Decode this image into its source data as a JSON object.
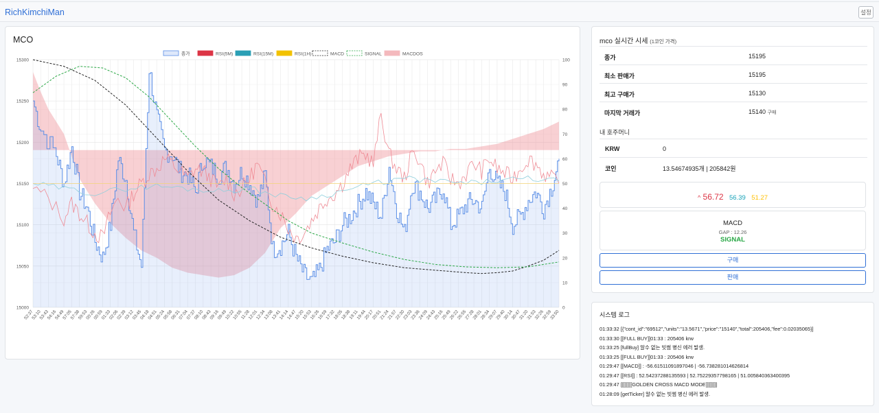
{
  "app": {
    "brand": "RichKimchiMan",
    "settings_label": "설정"
  },
  "chart": {
    "title": "MCO"
  },
  "chart_data": {
    "type": "line",
    "legend": [
      {
        "name": "종가",
        "color": "#aecbf5",
        "style": "fill"
      },
      {
        "name": "RSI(5M)",
        "color": "#dc3545",
        "style": "fill"
      },
      {
        "name": "RSI(15M)",
        "color": "#2a9fb5",
        "style": "fill"
      },
      {
        "name": "RSI(1H)",
        "color": "#f2c200",
        "style": "fill"
      },
      {
        "name": "MACD",
        "color": "#222222",
        "style": "dash"
      },
      {
        "name": "SIGNAL",
        "color": "#28a745",
        "style": "dash"
      },
      {
        "name": "MACDOS",
        "color": "#f4b9bd",
        "style": "fill"
      }
    ],
    "legend_position": "top",
    "grid": true,
    "y_left": {
      "min": 15000,
      "max": 15300,
      "ticks": [
        15000,
        15050,
        15100,
        15150,
        15200,
        15250,
        15300
      ]
    },
    "y_right": {
      "min": 0,
      "max": 100,
      "ticks": [
        0,
        10,
        20,
        30,
        40,
        50,
        60,
        70,
        80,
        90,
        100
      ]
    },
    "x_ticks": [
      "52:37",
      "53:10",
      "53:43",
      "54:16",
      "54:49",
      "57:05",
      "57:38",
      "59:53",
      "00:26",
      "00:59",
      "01:33",
      "02:06",
      "02:39",
      "03:12",
      "03:45",
      "04:18",
      "04:51",
      "05:24",
      "05:58",
      "06:31",
      "07:04",
      "07:37",
      "08:10",
      "08:43",
      "09:16",
      "09:49",
      "10:22",
      "10:55",
      "11:28",
      "12:01",
      "12:34",
      "13:08",
      "13:41",
      "14:14",
      "14:47",
      "15:20",
      "15:53",
      "16:26",
      "16:59",
      "17:32",
      "18:05",
      "18:38",
      "19:11",
      "19:44",
      "20:17",
      "20:51",
      "21:24",
      "21:57",
      "22:30",
      "23:03",
      "23:36",
      "24:09",
      "24:43",
      "25:16",
      "25:49",
      "26:22",
      "26:55",
      "27:28",
      "28:01",
      "28:34",
      "29:07",
      "29:40",
      "30:14",
      "30:47",
      "31:20",
      "31:53",
      "32:26",
      "32:59",
      "33:50"
    ],
    "close_keypoints": [
      [
        0,
        15250
      ],
      [
        1,
        15215
      ],
      [
        3,
        15185
      ],
      [
        4,
        15150
      ],
      [
        5,
        15195
      ],
      [
        6,
        15140
      ],
      [
        7,
        15120
      ],
      [
        8,
        15080
      ],
      [
        9,
        15060
      ],
      [
        10,
        15100
      ],
      [
        11,
        15180
      ],
      [
        12,
        15155
      ],
      [
        13,
        15090
      ],
      [
        14,
        15050
      ],
      [
        15,
        15290
      ],
      [
        16,
        15230
      ],
      [
        17,
        15190
      ],
      [
        18,
        15185
      ],
      [
        19,
        15165
      ],
      [
        20,
        15160
      ],
      [
        21,
        15140
      ],
      [
        22,
        15180
      ],
      [
        23,
        15170
      ],
      [
        24,
        15160
      ],
      [
        25,
        15170
      ],
      [
        26,
        15150
      ],
      [
        27,
        15165
      ],
      [
        28,
        15150
      ],
      [
        29,
        15130
      ],
      [
        30,
        15160
      ],
      [
        31,
        15070
      ],
      [
        32,
        15075
      ],
      [
        33,
        15090
      ],
      [
        34,
        15060
      ],
      [
        35,
        15040
      ],
      [
        36,
        15030
      ],
      [
        37,
        15045
      ],
      [
        38,
        15070
      ],
      [
        39,
        15080
      ],
      [
        40,
        15100
      ],
      [
        41,
        15110
      ],
      [
        42,
        15125
      ],
      [
        43,
        15140
      ],
      [
        44,
        15125
      ],
      [
        45,
        15110
      ],
      [
        46,
        15170
      ],
      [
        47,
        15120
      ],
      [
        48,
        15090
      ],
      [
        49,
        15150
      ],
      [
        50,
        15140
      ],
      [
        51,
        15120
      ],
      [
        52,
        15130
      ],
      [
        53,
        15145
      ],
      [
        54,
        15100
      ],
      [
        55,
        15110
      ],
      [
        56,
        15125
      ],
      [
        57,
        15130
      ],
      [
        58,
        15120
      ],
      [
        59,
        15170
      ],
      [
        60,
        15150
      ],
      [
        61,
        15140
      ],
      [
        62,
        15100
      ],
      [
        63,
        15110
      ],
      [
        64,
        15130
      ],
      [
        65,
        15140
      ],
      [
        66,
        15120
      ],
      [
        67,
        15145
      ],
      [
        68,
        15180
      ]
    ],
    "rsi5m_keypoints": [
      [
        0,
        48
      ],
      [
        2,
        44
      ],
      [
        4,
        36
      ],
      [
        5,
        42
      ],
      [
        6,
        38
      ],
      [
        7,
        34
      ],
      [
        8,
        30
      ],
      [
        9,
        28
      ],
      [
        10,
        38
      ],
      [
        11,
        44
      ],
      [
        12,
        40
      ],
      [
        13,
        46
      ],
      [
        14,
        50
      ],
      [
        15,
        54
      ],
      [
        16,
        56
      ],
      [
        17,
        60
      ],
      [
        18,
        58
      ],
      [
        19,
        55
      ],
      [
        20,
        52
      ],
      [
        21,
        56
      ],
      [
        22,
        55
      ],
      [
        23,
        52
      ],
      [
        24,
        48
      ],
      [
        25,
        52
      ],
      [
        26,
        46
      ],
      [
        27,
        48
      ],
      [
        28,
        52
      ],
      [
        29,
        58
      ],
      [
        30,
        50
      ],
      [
        31,
        42
      ],
      [
        32,
        38
      ],
      [
        33,
        32
      ],
      [
        34,
        28
      ],
      [
        35,
        30
      ],
      [
        36,
        35
      ],
      [
        37,
        40
      ],
      [
        38,
        44
      ],
      [
        39,
        46
      ],
      [
        40,
        50
      ],
      [
        41,
        56
      ],
      [
        42,
        60
      ],
      [
        43,
        62
      ],
      [
        44,
        58
      ],
      [
        45,
        78
      ],
      [
        46,
        62
      ],
      [
        47,
        56
      ],
      [
        48,
        52
      ],
      [
        49,
        62
      ],
      [
        50,
        60
      ],
      [
        51,
        50
      ],
      [
        52,
        55
      ],
      [
        53,
        58
      ],
      [
        54,
        52
      ],
      [
        55,
        50
      ],
      [
        56,
        54
      ],
      [
        57,
        58
      ],
      [
        58,
        55
      ],
      [
        59,
        60
      ],
      [
        60,
        56
      ],
      [
        61,
        54
      ],
      [
        62,
        52
      ],
      [
        63,
        56
      ],
      [
        64,
        60
      ],
      [
        65,
        58
      ],
      [
        66,
        54
      ],
      [
        67,
        52
      ],
      [
        68,
        50
      ]
    ],
    "rsi15m_keypoints": [
      [
        0,
        50
      ],
      [
        4,
        48
      ],
      [
        8,
        46
      ],
      [
        12,
        48
      ],
      [
        16,
        49
      ],
      [
        20,
        48
      ],
      [
        24,
        47
      ],
      [
        28,
        48
      ],
      [
        32,
        45
      ],
      [
        36,
        44
      ],
      [
        40,
        47
      ],
      [
        44,
        50
      ],
      [
        48,
        52
      ],
      [
        52,
        51
      ],
      [
        56,
        50
      ],
      [
        60,
        51
      ],
      [
        64,
        52
      ],
      [
        68,
        51
      ]
    ],
    "rsi1h_keypoints": [
      [
        0,
        50
      ],
      [
        10,
        50
      ],
      [
        20,
        50
      ],
      [
        30,
        50
      ],
      [
        40,
        50
      ],
      [
        50,
        50
      ],
      [
        60,
        50
      ],
      [
        68,
        50
      ]
    ],
    "macd_keypoints": [
      [
        0,
        15300
      ],
      [
        4,
        15292
      ],
      [
        8,
        15275
      ],
      [
        12,
        15245
      ],
      [
        16,
        15205
      ],
      [
        20,
        15165
      ],
      [
        24,
        15130
      ],
      [
        28,
        15105
      ],
      [
        32,
        15085
      ],
      [
        36,
        15072
      ],
      [
        40,
        15062
      ],
      [
        44,
        15054
      ],
      [
        48,
        15048
      ],
      [
        52,
        15045
      ],
      [
        56,
        15042
      ],
      [
        58,
        15041
      ],
      [
        60,
        15042
      ],
      [
        62,
        15044
      ],
      [
        64,
        15050
      ],
      [
        66,
        15057
      ],
      [
        68,
        15069
      ]
    ],
    "signal_keypoints": [
      [
        0,
        15260
      ],
      [
        3,
        15280
      ],
      [
        6,
        15292
      ],
      [
        9,
        15290
      ],
      [
        12,
        15278
      ],
      [
        15,
        15255
      ],
      [
        18,
        15225
      ],
      [
        21,
        15195
      ],
      [
        24,
        15168
      ],
      [
        27,
        15145
      ],
      [
        30,
        15125
      ],
      [
        33,
        15105
      ],
      [
        36,
        15090
      ],
      [
        40,
        15078
      ],
      [
        44,
        15067
      ],
      [
        48,
        15058
      ],
      [
        52,
        15052
      ],
      [
        56,
        15049
      ],
      [
        60,
        15048
      ],
      [
        64,
        15049
      ],
      [
        68,
        15055
      ]
    ],
    "macdos_keypoints": [
      [
        0,
        95
      ],
      [
        1,
        87
      ],
      [
        2,
        80
      ],
      [
        4,
        70
      ],
      [
        6,
        52
      ],
      [
        8,
        42
      ],
      [
        10,
        34
      ],
      [
        12,
        28
      ],
      [
        14,
        23
      ],
      [
        16,
        20
      ],
      [
        18,
        16
      ],
      [
        20,
        14
      ],
      [
        22,
        13
      ],
      [
        24,
        12
      ],
      [
        26,
        13
      ],
      [
        28,
        16
      ],
      [
        30,
        22
      ],
      [
        32,
        32
      ],
      [
        34,
        38
      ],
      [
        36,
        45
      ],
      [
        38,
        49
      ],
      [
        40,
        53
      ],
      [
        42,
        57
      ],
      [
        44,
        59
      ],
      [
        46,
        61
      ],
      [
        48,
        62
      ],
      [
        50,
        63
      ],
      [
        52,
        63
      ],
      [
        54,
        64
      ],
      [
        56,
        64
      ],
      [
        58,
        65
      ],
      [
        60,
        66
      ],
      [
        62,
        68
      ],
      [
        64,
        70
      ],
      [
        66,
        72
      ],
      [
        68,
        75
      ]
    ],
    "macdos_baseline": 63.5
  },
  "ticker": {
    "title": "mco 실시간 시세",
    "title_note": "(1코인 가격)",
    "rows": [
      {
        "label": "종가",
        "value": "15195",
        "note": ""
      },
      {
        "label": "최소 판매가",
        "value": "15195",
        "note": ""
      },
      {
        "label": "최고 구매가",
        "value": "15130",
        "note": ""
      },
      {
        "label": "마지막 거래가",
        "value": "15140",
        "note": "구매"
      }
    ],
    "wallet_label": "내 호주머니",
    "wallet": [
      {
        "label": "KRW",
        "value": "0"
      },
      {
        "label": "코인",
        "value": "13.54674935개 | 205842원"
      }
    ],
    "rsi": {
      "arrow": "^",
      "rsi5m": "56.72",
      "rsi15m": "56.39",
      "rsi1h": "51.27"
    },
    "macd": {
      "label": "MACD",
      "gap": "GAP : 12.26",
      "state": "SIGNAL"
    },
    "buy_label": "구매",
    "sell_label": "판매"
  },
  "log": {
    "title": "시스템 로그",
    "lines": [
      "01:33:32 [{\"cont_id\":\"69512\",\"units\":\"13.5671\",\"price\":\"15140\",\"total\":205406,\"fee\":0.02035065}]",
      "01:33:30 [[FULL BUY]]01:33 : 205406 krw",
      "01:33:25 [fullBuy] 알수 없는 빗썸 병신 에러 발생.",
      "01:33:25 [[FULL BUY]]01:33 : 205406 krw",
      "01:29:47 [[MACD]] : -56.61511091897046 | -56.738281014626814",
      "01:29:47 [[RSI]] : 52.54237288135593 | 52.75229357798165 | 51.005840363400395",
      "01:29:47 [[[[[[[[GOLDEN CROSS MACD MODE]]]]]]]]",
      "01:28:09 [getTicker] 알수 없는 빗썸 병신 에러 발생."
    ]
  }
}
